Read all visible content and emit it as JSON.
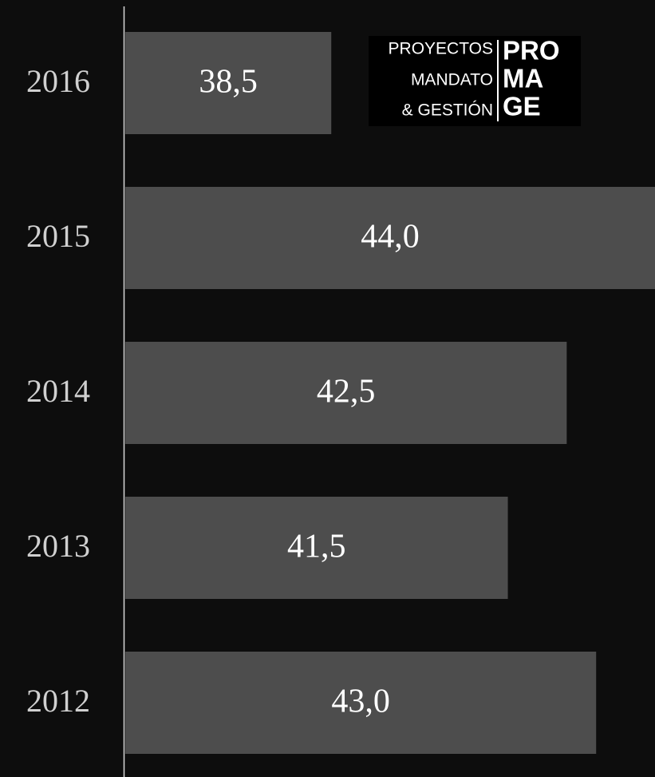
{
  "chart_data": {
    "type": "barh",
    "categories": [
      "2016",
      "2015",
      "2014",
      "2013",
      "2012"
    ],
    "values": [
      38.5,
      44.0,
      42.5,
      41.5,
      43.0
    ],
    "value_labels": [
      "38,5",
      "44,0",
      "42,5",
      "41,5",
      "43,0"
    ],
    "color": "#4d4d4d",
    "xlim": [
      35,
      44
    ]
  },
  "logo": {
    "lines": [
      "PROYECTOS",
      "MANDATO",
      "& GESTIÓN"
    ],
    "mark": [
      "PRO",
      "MA",
      "GE"
    ]
  }
}
